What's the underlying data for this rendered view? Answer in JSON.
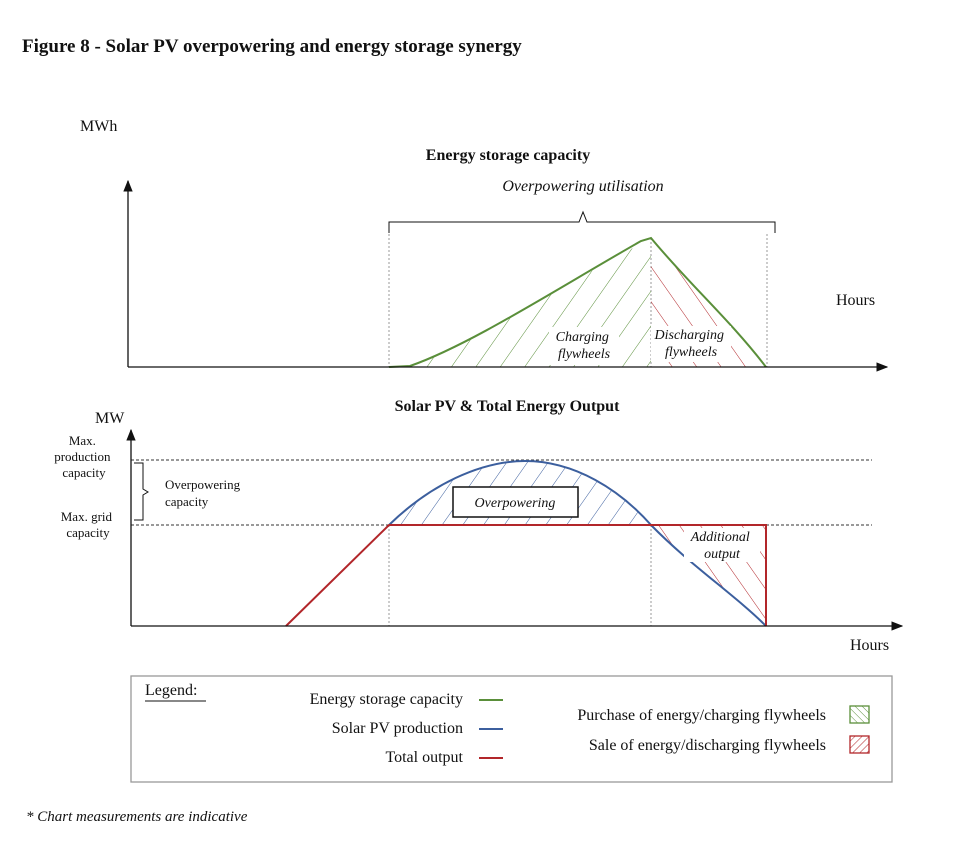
{
  "figure": {
    "title": "Figure 8 - Solar PV overpowering and energy storage synergy",
    "footnote": "* Chart measurements are indicative"
  },
  "top_panel": {
    "y_unit": "MWh",
    "title": "Energy storage capacity",
    "brace_label": "Overpowering utilisation",
    "x_label": "Hours",
    "charging_label": [
      "Charging",
      "flywheels"
    ],
    "discharging_label": [
      "Discharging",
      "flywheels"
    ]
  },
  "bottom_panel": {
    "y_unit": "MW",
    "title": "Solar PV & Total Energy Output",
    "x_label": "Hours",
    "max_production_label": [
      "Max.",
      "production",
      "capacity"
    ],
    "max_grid_label": [
      "Max. grid",
      "capacity"
    ],
    "overpowering_capacity_label": [
      "Overpowering",
      "capacity"
    ],
    "overpowering_box": "Overpowering",
    "additional_output_label": [
      "Additional",
      "output"
    ]
  },
  "legend": {
    "title": "Legend:",
    "lines": [
      {
        "label": "Energy  storage capacity",
        "color": "#5a8f3a"
      },
      {
        "label": "Solar PV production",
        "color": "#3c5f9e"
      },
      {
        "label": "Total output",
        "color": "#b2262a"
      }
    ],
    "fills": [
      {
        "label": "Purchase of energy/charging  flywheels",
        "color": "#5a8f3a"
      },
      {
        "label": "Sale of energy/discharging  flywheels",
        "color": "#b2262a"
      }
    ]
  },
  "colors": {
    "storage": "#5a8f3a",
    "solar": "#3c5f9e",
    "total": "#b2262a",
    "axis": "#111111",
    "guide": "#999999"
  }
}
